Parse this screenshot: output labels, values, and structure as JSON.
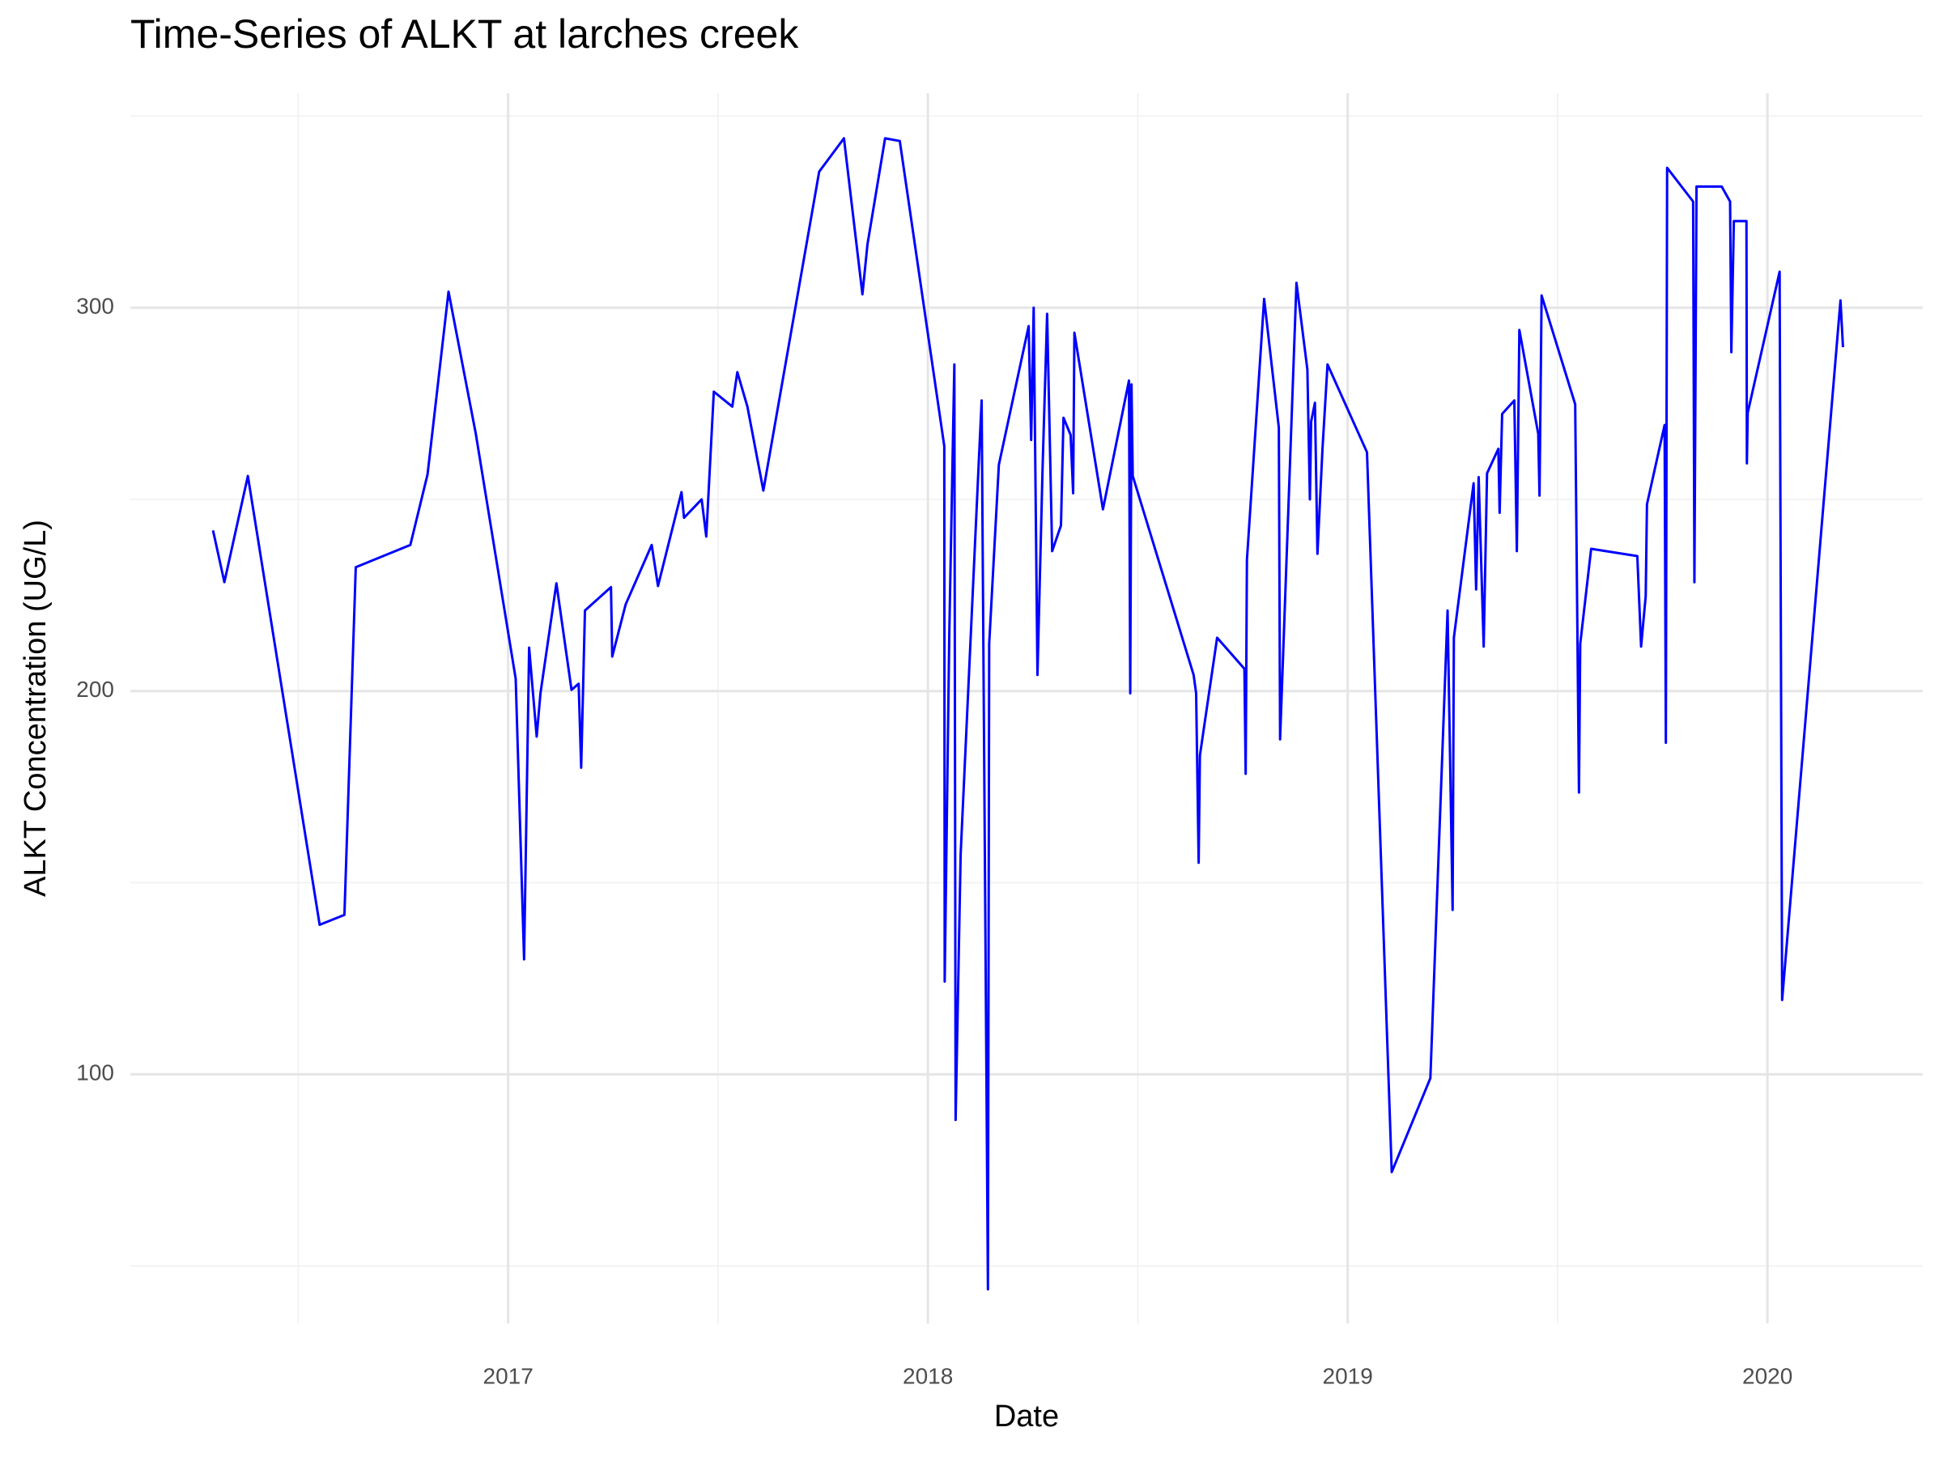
{
  "chart_data": {
    "type": "line",
    "title": "Time-Series of ALKT at larches creek",
    "x_label": "Date",
    "y_label": "ALKT Concentration (UG/L)",
    "color": "#0000ff",
    "grid": true,
    "xlim": [
      2016.1,
      2020.37
    ],
    "ylim": [
      35,
      356
    ],
    "xticks": [
      2017,
      2018,
      2019,
      2020
    ],
    "yticks": [
      100,
      200,
      300
    ],
    "x_minor_ticks": [
      2016.5,
      2017.5,
      2018.5,
      2019.5
    ],
    "y_minor_ticks": [
      50,
      150,
      250,
      350
    ],
    "x": [
      2016.297,
      2016.324,
      2016.38,
      2016.551,
      2016.61,
      2016.637,
      2016.767,
      2016.808,
      2016.858,
      2016.923,
      2017.018,
      2017.038,
      2017.05,
      2017.068,
      2017.077,
      2017.115,
      2017.151,
      2017.168,
      2017.174,
      2017.183,
      2017.245,
      2017.248,
      2017.28,
      2017.342,
      2017.357,
      2017.413,
      2017.419,
      2017.461,
      2017.472,
      2017.49,
      2017.534,
      2017.546,
      2017.57,
      2017.608,
      2017.741,
      2017.8,
      2017.844,
      2017.856,
      2017.898,
      2017.933,
      2018.039,
      2018.04,
      2018.051,
      2018.063,
      2018.066,
      2018.078,
      2018.128,
      2018.143,
      2018.146,
      2018.169,
      2018.24,
      2018.246,
      2018.252,
      2018.261,
      2018.273,
      2018.284,
      2018.296,
      2018.317,
      2018.323,
      2018.34,
      2018.346,
      2018.349,
      2018.417,
      2018.479,
      2018.482,
      2018.485,
      2018.488,
      2018.633,
      2018.639,
      2018.645,
      2018.648,
      2018.689,
      2018.754,
      2018.757,
      2018.76,
      2018.801,
      2018.836,
      2018.839,
      2018.878,
      2018.904,
      2018.91,
      2018.913,
      2018.922,
      2018.928,
      2018.94,
      2018.952,
      2019.046,
      2019.105,
      2019.197,
      2019.238,
      2019.25,
      2019.253,
      2019.3,
      2019.306,
      2019.312,
      2019.324,
      2019.332,
      2019.359,
      2019.362,
      2019.368,
      2019.397,
      2019.403,
      2019.409,
      2019.454,
      2019.457,
      2019.462,
      2019.542,
      2019.551,
      2019.554,
      2019.58,
      2019.69,
      2019.699,
      2019.71,
      2019.713,
      2019.755,
      2019.758,
      2019.761,
      2019.823,
      2019.826,
      2019.831,
      2019.891,
      2019.911,
      2019.914,
      2019.92,
      2019.95,
      2019.951,
      2019.953,
      2020.029,
      2020.035,
      2020.174,
      2020.18
    ],
    "values": [
      241.9,
      228.4,
      256.1,
      139.0,
      141.6,
      232.3,
      238.1,
      256.5,
      304.2,
      267.1,
      203.2,
      130.0,
      211.3,
      188.1,
      199.4,
      228.1,
      200.3,
      201.9,
      180.0,
      221.0,
      227.1,
      209.0,
      222.6,
      238.1,
      227.4,
      251.9,
      245.2,
      250.0,
      240.3,
      278.1,
      274.2,
      283.2,
      274.2,
      252.3,
      335.5,
      344.2,
      303.5,
      316.5,
      344.2,
      343.5,
      263.9,
      124.2,
      215.5,
      285.2,
      88.1,
      157.4,
      275.8,
      43.9,
      212.3,
      259.0,
      295.2,
      265.5,
      300.0,
      204.2,
      257.4,
      298.4,
      236.5,
      243.2,
      271.3,
      266.8,
      251.6,
      293.5,
      247.4,
      281.0,
      199.4,
      280.0,
      256.1,
      204.2,
      199.4,
      155.2,
      183.2,
      213.9,
      205.8,
      178.4,
      234.2,
      302.3,
      268.7,
      187.4,
      306.5,
      283.9,
      250.0,
      270.3,
      275.2,
      235.8,
      263.2,
      285.2,
      262.3,
      74.5,
      99.0,
      221.0,
      142.9,
      213.9,
      254.2,
      226.5,
      255.8,
      211.6,
      256.8,
      263.2,
      246.5,
      272.3,
      275.8,
      236.5,
      294.2,
      267.1,
      251.0,
      303.2,
      274.8,
      173.5,
      212.3,
      237.1,
      235.2,
      211.6,
      224.8,
      248.7,
      269.4,
      186.5,
      336.5,
      327.7,
      228.4,
      331.6,
      331.6,
      327.7,
      288.4,
      322.6,
      322.6,
      259.4,
      272.6,
      309.4,
      119.4,
      301.9,
      289.7
    ]
  }
}
